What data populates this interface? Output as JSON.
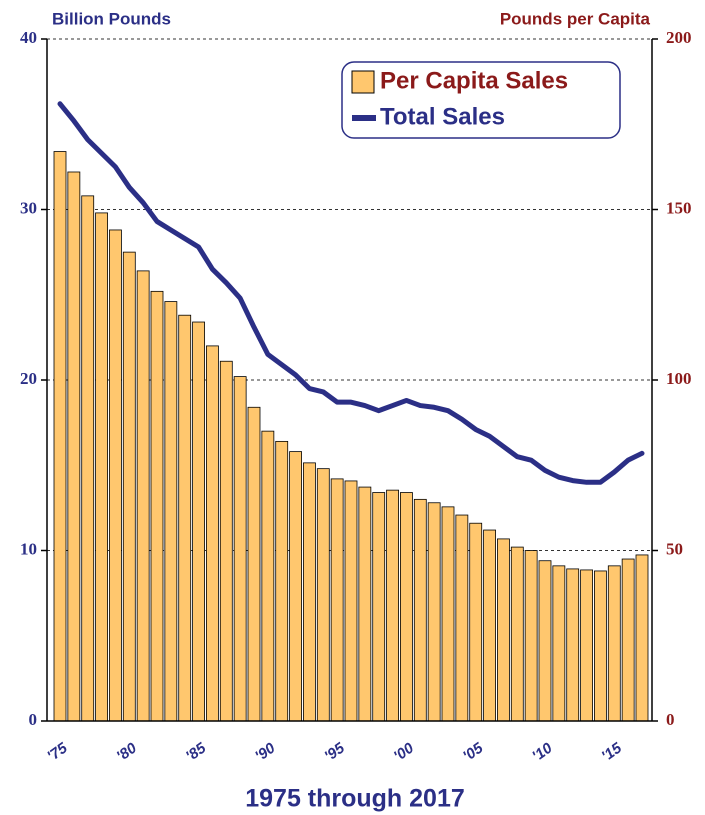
{
  "chart_data": {
    "type": "bar_line",
    "title": "1975 through 2017",
    "y_label": "Billion Pounds",
    "y2_label": "Pounds per Capita",
    "categories": [
      "'75",
      null,
      null,
      null,
      null,
      "'80",
      null,
      null,
      null,
      null,
      "'85",
      null,
      null,
      null,
      null,
      "'90",
      null,
      null,
      null,
      null,
      "'95",
      null,
      null,
      null,
      null,
      "'00",
      null,
      null,
      null,
      null,
      "'05",
      null,
      null,
      null,
      null,
      "'10",
      null,
      null,
      null,
      null,
      "'15",
      null,
      null
    ],
    "series": [
      {
        "name": "Per Capita Sales",
        "type": "bar",
        "axis": "y2",
        "color": "#ffc76e",
        "values": [
          167,
          161,
          154,
          149,
          144,
          137.5,
          132,
          126,
          123,
          119,
          117,
          110,
          105.5,
          101,
          92,
          85,
          82,
          79,
          75.7,
          74,
          71,
          70.4,
          68.6,
          67,
          67.7,
          67,
          65,
          64,
          62.8,
          60.4,
          58,
          56,
          53.4,
          51,
          50,
          47,
          45.5,
          44.6,
          44.3,
          44,
          45.5,
          47.5,
          48.7
        ]
      },
      {
        "name": "Total Sales",
        "type": "line",
        "axis": "y",
        "color": "#2b2f86",
        "values": [
          36.2,
          35.2,
          34.1,
          33.3,
          32.5,
          31.3,
          30.4,
          29.3,
          28.8,
          28.3,
          27.8,
          26.5,
          25.7,
          24.8,
          23.1,
          21.5,
          20.9,
          20.3,
          19.5,
          19.3,
          18.7,
          18.7,
          18.5,
          18.2,
          18.5,
          18.8,
          18.5,
          18.4,
          18.2,
          17.7,
          17.1,
          16.7,
          16.1,
          15.5,
          15.3,
          14.7,
          14.3,
          14.1,
          14.0,
          14.0,
          14.6,
          15.3,
          15.7
        ]
      }
    ],
    "ylim": [
      0,
      40
    ],
    "yticks": [
      0,
      10,
      20,
      30,
      40
    ],
    "y2lim": [
      0,
      200
    ],
    "y2ticks": [
      0,
      50,
      100,
      150,
      200
    ],
    "grid": true,
    "legend": "upper right"
  }
}
